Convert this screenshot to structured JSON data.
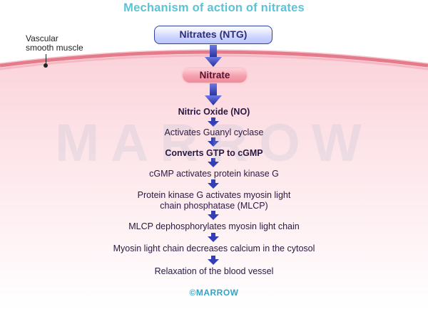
{
  "title": "Mechanism of action of nitrates",
  "membrane_label_line1": "Vascular",
  "membrane_label_line2": "smooth muscle",
  "drug_box": "Nitrates (NTG)",
  "cell_label": "Nitrate",
  "watermark": "MARROW",
  "steps": [
    {
      "text": "Nitric Oxide (NO)",
      "bold": true
    },
    {
      "text": "Activates Guanyl cyclase",
      "bold": false
    },
    {
      "text": "Converts GTP to cGMP",
      "bold": true
    },
    {
      "text": "cGMP activates protein kinase G",
      "bold": false
    },
    {
      "line1": "Protein kinase G activates myosin light",
      "line2": "chain phosphatase (MLCP)",
      "bold": false
    },
    {
      "text": "MLCP dephosphorylates myosin light chain",
      "bold": false
    },
    {
      "text": "Myosin light chain decreases calcium in the cytosol",
      "bold": false
    },
    {
      "text": "Relaxation of the blood vessel",
      "bold": false
    }
  ],
  "footer": "©MARROW",
  "colors": {
    "title": "#5bc4d4",
    "arrow": "#3340b5",
    "membrane": "#e47a8a",
    "cell_fill": "#fde6ea"
  }
}
